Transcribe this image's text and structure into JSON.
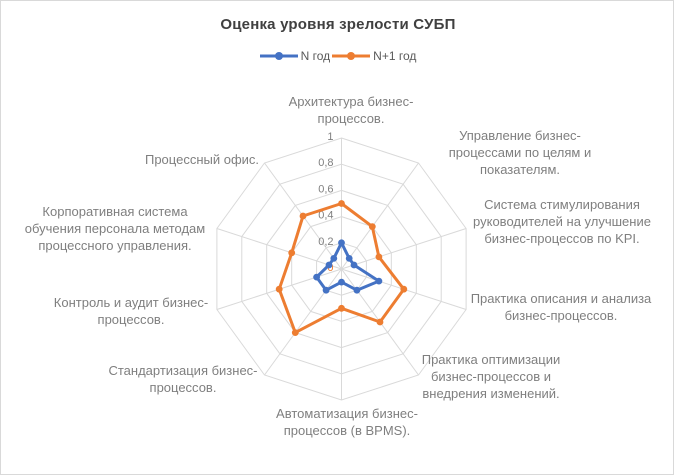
{
  "window": {
    "background": "#ffffff",
    "border_color": "#d9d9d9"
  },
  "chart_data": {
    "type": "radar",
    "title": "Оценка уровня зрелости СУБП",
    "legend_position": "top",
    "grid": true,
    "axis": {
      "min": 0,
      "max": 1,
      "step": 0.2,
      "grid_values": [
        0.2,
        0.4,
        0.6,
        0.8,
        1
      ],
      "ticks": [
        {
          "value": 0,
          "label": "0"
        },
        {
          "value": 0.2,
          "label": "0,2"
        },
        {
          "value": 0.4,
          "label": "0,4"
        },
        {
          "value": 0.6,
          "label": "0,6"
        },
        {
          "value": 0.8,
          "label": "0,8"
        },
        {
          "value": 1,
          "label": "1"
        }
      ]
    },
    "categories": [
      {
        "label": "Архитектура бизнес-процессов.",
        "lines": [
          "Архитектура бизнес-",
          "процессов."
        ]
      },
      {
        "label": "Управление бизнес-процессами по целям и показателям.",
        "lines": [
          "Управление бизнес-",
          "процессами по целям и",
          "показателям."
        ]
      },
      {
        "label": "Система стимулирования руководителей на улучшение бизнес-процессов по KPI.",
        "lines": [
          "Система стимулирования",
          "руководителей на улучшение",
          "бизнес-процессов по KPI."
        ]
      },
      {
        "label": "Практика описания и анализа бизнес-процессов.",
        "lines": [
          "Практика описания и анализа",
          "бизнес-процессов."
        ]
      },
      {
        "label": "Практика оптимизации бизнес-процессов и внедрения изменений.",
        "lines": [
          "Практика оптимизации",
          "бизнес-процессов и",
          "внедрения изменений."
        ]
      },
      {
        "label": "Автоматизация бизнес-процессов (в BPMS).",
        "lines": [
          "Автоматизация бизнес-",
          "процессов (в BPMS)."
        ]
      },
      {
        "label": "Стандартизация бизнес-процессов.",
        "lines": [
          "Стандартизация бизнес-",
          "процессов."
        ]
      },
      {
        "label": "Контроль и аудит бизнес-процессов.",
        "lines": [
          "Контроль и аудит бизнес-",
          "процессов."
        ]
      },
      {
        "label": "Корпоративная система обучения персонала методам процессного управления.",
        "lines": [
          "Корпоративная система",
          "обучения персонала методам",
          "процессного управления."
        ]
      },
      {
        "label": "Процессный офис.",
        "lines": [
          "Процессный офис."
        ]
      }
    ],
    "series": [
      {
        "name": "N год",
        "color": "#4472c4",
        "values": [
          0.2,
          0.1,
          0.1,
          0.3,
          0.2,
          0.1,
          0.2,
          0.2,
          0.1,
          0.1
        ]
      },
      {
        "name": "N+1 год",
        "color": "#ed7d31",
        "values": [
          0.5,
          0.4,
          0.3,
          0.5,
          0.5,
          0.3,
          0.6,
          0.5,
          0.4,
          0.5
        ]
      }
    ]
  }
}
